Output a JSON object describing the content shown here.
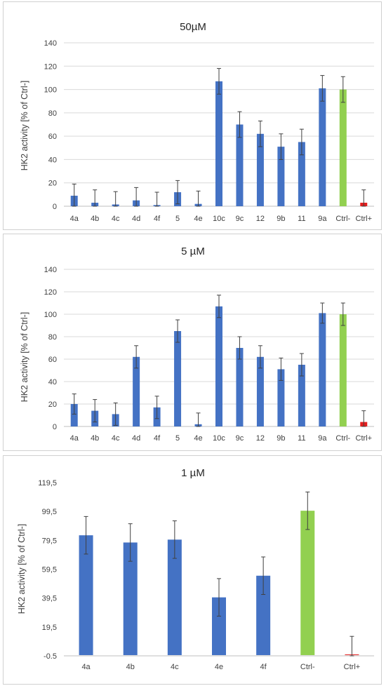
{
  "colors": {
    "blue": "#4472C4",
    "green": "#92D050",
    "red": "#E41E1E",
    "grid": "#D9D9D9",
    "axis": "#BFBFBF",
    "error": "#404040"
  },
  "chart_data": [
    {
      "type": "bar",
      "title": "50µM",
      "ylabel": "HK2 activity [% of Ctrl-]",
      "ylim": [
        0,
        140
      ],
      "yticks": [
        "0",
        "20",
        "40",
        "60",
        "80",
        "100",
        "120",
        "140"
      ],
      "grid": true,
      "categories": [
        "4a",
        "4b",
        "4c",
        "4d",
        "4f",
        "5",
        "4e",
        "10c",
        "9c",
        "12",
        "9b",
        "11",
        "9a",
        "Ctrl-",
        "Ctrl+"
      ],
      "values": [
        9,
        3,
        1.5,
        5,
        1,
        12,
        2,
        107,
        70,
        62,
        51,
        55,
        101,
        100,
        3
      ],
      "errors": [
        10,
        11,
        11,
        11,
        11,
        10,
        11,
        11,
        11,
        11,
        11,
        11,
        11,
        11,
        11
      ],
      "bar_colors": [
        "blue",
        "blue",
        "blue",
        "blue",
        "blue",
        "blue",
        "blue",
        "blue",
        "blue",
        "blue",
        "blue",
        "blue",
        "blue",
        "green",
        "red"
      ]
    },
    {
      "type": "bar",
      "title": "5 µM",
      "ylabel": "HK2 activity [% of Ctrl-]",
      "ylim": [
        0,
        140
      ],
      "yticks": [
        "0",
        "20",
        "40",
        "60",
        "80",
        "100",
        "120",
        "140"
      ],
      "grid": true,
      "categories": [
        "4a",
        "4b",
        "4c",
        "4d",
        "4f",
        "5",
        "4e",
        "10c",
        "9c",
        "12",
        "9b",
        "11",
        "9a",
        "Ctrl-",
        "Ctrl+"
      ],
      "values": [
        20,
        14,
        11,
        62,
        17,
        85,
        2,
        107,
        70,
        62,
        51,
        55,
        101,
        100,
        4
      ],
      "errors": [
        9,
        10,
        10,
        10,
        10,
        10,
        10,
        10,
        10,
        10,
        10,
        10,
        9,
        10,
        10
      ],
      "bar_colors": [
        "blue",
        "blue",
        "blue",
        "blue",
        "blue",
        "blue",
        "blue",
        "blue",
        "blue",
        "blue",
        "blue",
        "blue",
        "blue",
        "green",
        "red"
      ]
    },
    {
      "type": "bar",
      "title": "1 µM",
      "ylabel": "HK2 activity [% of Ctrl-]",
      "ylim": [
        -0.5,
        119.5
      ],
      "yticks": [
        "-0.5",
        "19,5",
        "39,5",
        "59,5",
        "79,5",
        "99,5",
        "119,5"
      ],
      "grid": false,
      "categories": [
        "4a",
        "4b",
        "4c",
        "4e",
        "4f",
        "Ctrl-",
        "Ctrl+"
      ],
      "values": [
        83,
        78,
        80,
        40,
        55,
        100,
        0
      ],
      "errors": [
        13,
        13,
        13,
        13,
        13,
        13,
        13
      ],
      "bar_colors": [
        "blue",
        "blue",
        "blue",
        "blue",
        "blue",
        "green",
        "red"
      ]
    }
  ]
}
